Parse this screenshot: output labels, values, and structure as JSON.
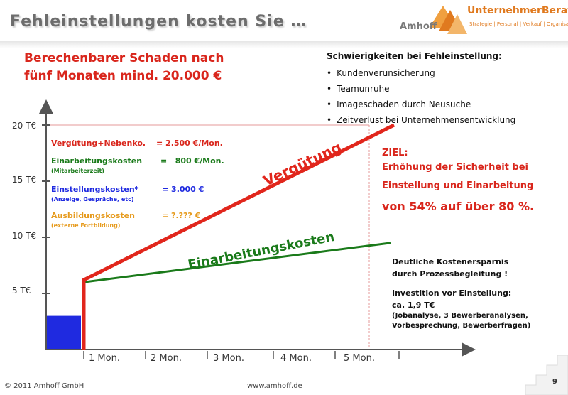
{
  "header": {
    "title": "Fehleinstellungen  kosten  Sie …",
    "logo": {
      "company": "Amhoff",
      "brand": "UnternehmerBerater",
      "tagline": "Strategie | Personal | Verkauf | Organisation"
    }
  },
  "headline": {
    "line1": "Berechenbarer Schaden nach",
    "line2": "fünf Monaten mind. 20.000 €"
  },
  "difficulties": {
    "title": "Schwierigkeiten bei Fehleinstellung:",
    "items": [
      "Kundenverunsicherung",
      "Teamunruhe",
      "Imageschaden  durch  Neusuche",
      "Zeitverlust  bei  Unternehmensentwicklung"
    ]
  },
  "chart": {
    "y_ticks": [
      "20 T€",
      "15 T€",
      "10 T€",
      "5 T€"
    ],
    "x_ticks": [
      "1 Mon.",
      "2 Mon.",
      "3 Mon.",
      "4 Mon.",
      "5 Mon."
    ],
    "line_labels": {
      "verguetung": "Vergütung",
      "einarbeitung": "Einarbeitungskosten"
    },
    "colors": {
      "red": "#e1261c",
      "green": "#1a7a1a",
      "blue": "#1f2ae0",
      "orange": "#e69a1c",
      "axis": "#555555"
    }
  },
  "chart_data": {
    "type": "line",
    "x_unit": "Mon.",
    "y_unit": "T€",
    "ylim": [
      0,
      20
    ],
    "xlim": [
      0,
      5.5
    ],
    "series": [
      {
        "name": "Vergütung",
        "points": [
          [
            1,
            0
          ],
          [
            1,
            6.5
          ],
          [
            5.2,
            20
          ]
        ]
      },
      {
        "name": "Einarbeitungskosten",
        "points": [
          [
            1,
            6
          ],
          [
            5.5,
            9.5
          ]
        ]
      }
    ],
    "bar": {
      "x0": 0,
      "x1": 1,
      "value": 3
    },
    "reference_line": {
      "y": 20,
      "x_end": 5.5
    }
  },
  "costs": {
    "verguetung": {
      "label": "Vergütung+Nebenko.",
      "value": "= 2.500 €/Mon."
    },
    "einarbeitung": {
      "label": "Einarbeitungskosten",
      "value": "=   800 €/Mon.",
      "note": "(Mitarbeiterzeit)"
    },
    "einstellung": {
      "label": "Einstellungskosten*",
      "value": "= 3.000 €",
      "note": "(Anzeige, Gespräche, etc)"
    },
    "ausbildung": {
      "label": "Ausbildungskosten",
      "value": "= ?.??? €",
      "note": "(externe Fortbildung)"
    }
  },
  "goal": {
    "title": "ZIEL:",
    "line1": "Erhöhung  der  Sicherheit  bei",
    "line2": "Einstellung  und  Einarbeitung",
    "line3": "von 54% auf über 80 %."
  },
  "savings": {
    "line1": "Deutliche Kostenersparnis",
    "line2": "durch Prozessbegleitung !",
    "line3": "Investition vor Einstellung:",
    "line4": "ca. 1,9  T€",
    "line5": "(Jobanalyse, 3 Bewerberanalysen,",
    "line6": "Vorbesprechung, Bewerberfragen)"
  },
  "footer": {
    "copyright": "© 2011  Amhoff GmbH",
    "url": "www.amhoff.de",
    "page": "9"
  }
}
